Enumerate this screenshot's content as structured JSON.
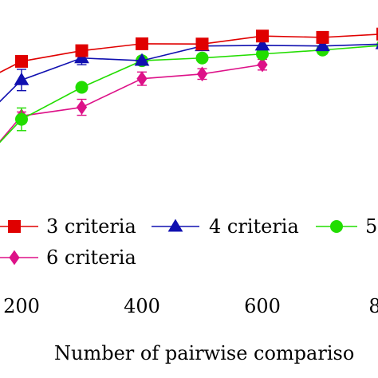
{
  "chart_data": {
    "type": "line",
    "xlabel": "Number of pairwise compariso",
    "x_ticks": [
      "200",
      "400",
      "600",
      "8"
    ],
    "xlim": [
      150,
      820
    ],
    "ylim": [
      0.0,
      1.0
    ],
    "grid": false,
    "legend_placement": "bottom",
    "series": [
      {
        "name": "3 criteria",
        "color": "#e00000",
        "marker": "square",
        "points": [
          {
            "x": 150,
            "y": 0.58
          },
          {
            "x": 200,
            "y": 0.695
          },
          {
            "x": 300,
            "y": 0.775
          },
          {
            "x": 400,
            "y": 0.827
          },
          {
            "x": 500,
            "y": 0.825
          },
          {
            "x": 600,
            "y": 0.885
          },
          {
            "x": 700,
            "y": 0.875
          },
          {
            "x": 800,
            "y": 0.9
          }
        ],
        "error": [
          0,
          0,
          0,
          0,
          0,
          0,
          0,
          0
        ]
      },
      {
        "name": "4 criteria",
        "color": "#1010b0",
        "marker": "triangle",
        "points": [
          {
            "x": 150,
            "y": 0.33
          },
          {
            "x": 200,
            "y": 0.555
          },
          {
            "x": 300,
            "y": 0.72
          },
          {
            "x": 400,
            "y": 0.7
          },
          {
            "x": 500,
            "y": 0.81
          },
          {
            "x": 600,
            "y": 0.815
          },
          {
            "x": 700,
            "y": 0.81
          },
          {
            "x": 800,
            "y": 0.825
          }
        ],
        "error": [
          0,
          0.08,
          0.05,
          0,
          0.03,
          0.03,
          0.02,
          0.02
        ]
      },
      {
        "name": "5",
        "color": "#22dd00",
        "marker": "circle",
        "points": [
          {
            "x": 150,
            "y": 0.02
          },
          {
            "x": 200,
            "y": 0.26
          },
          {
            "x": 300,
            "y": 0.5
          },
          {
            "x": 400,
            "y": 0.7
          },
          {
            "x": 500,
            "y": 0.72
          },
          {
            "x": 600,
            "y": 0.75
          },
          {
            "x": 700,
            "y": 0.78
          },
          {
            "x": 800,
            "y": 0.815
          }
        ],
        "error": [
          0,
          0.085,
          0.03,
          0.03,
          0.02,
          0.02,
          0.03,
          0.02
        ]
      },
      {
        "name": "6 criteria",
        "color": "#dd1188",
        "marker": "diamond",
        "points": [
          {
            "x": 150,
            "y": 0.02
          },
          {
            "x": 200,
            "y": 0.285
          },
          {
            "x": 300,
            "y": 0.35
          },
          {
            "x": 400,
            "y": 0.565
          },
          {
            "x": 500,
            "y": 0.6
          },
          {
            "x": 600,
            "y": 0.67
          }
        ],
        "error": [
          0,
          0.03,
          0.06,
          0.05,
          0.04,
          0.04
        ]
      }
    ],
    "legend": [
      {
        "label": "3 criteria"
      },
      {
        "label": "4 criteria"
      },
      {
        "label": "5"
      },
      {
        "label": "6 criteria"
      }
    ]
  }
}
